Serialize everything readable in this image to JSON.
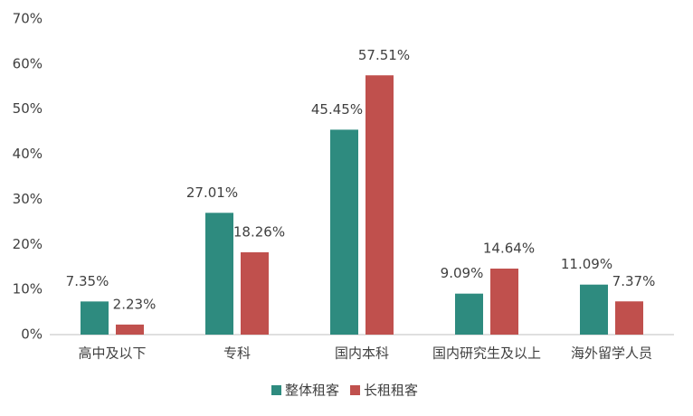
{
  "chart_data": {
    "type": "bar",
    "categories": [
      "高中及以下",
      "专科",
      "国内本科",
      "国内研究生及以上",
      "海外留学人员"
    ],
    "series": [
      {
        "name": "整体租客",
        "color": "#2e8b7f",
        "values": [
          7.35,
          27.01,
          45.45,
          9.09,
          11.09
        ],
        "value_labels": [
          "7.35%",
          "27.01%",
          "45.45%",
          "9.09%",
          "11.09%"
        ]
      },
      {
        "name": "长租租客",
        "color": "#c0504d",
        "values": [
          2.23,
          18.26,
          57.51,
          14.64,
          7.37
        ],
        "value_labels": [
          "2.23%",
          "18.26%",
          "57.51%",
          "14.64%",
          "7.37%"
        ]
      }
    ],
    "ylim": [
      0,
      70
    ],
    "yticks": [
      {
        "value": 0,
        "label": "0%"
      },
      {
        "value": 10,
        "label": "10%"
      },
      {
        "value": 20,
        "label": "20%"
      },
      {
        "value": 30,
        "label": "30%"
      },
      {
        "value": 40,
        "label": "40%"
      },
      {
        "value": 50,
        "label": "50%"
      },
      {
        "value": 60,
        "label": "60%"
      },
      {
        "value": 70,
        "label": "70%"
      }
    ],
    "grid": false,
    "legend": "bottom"
  }
}
